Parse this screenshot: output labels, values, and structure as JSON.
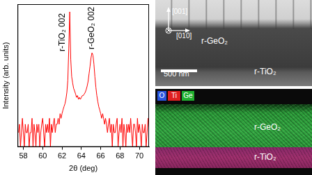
{
  "chart_data": {
    "type": "line",
    "x": [
      57.5,
      57.6,
      57.7,
      57.8,
      57.9,
      58.0,
      58.1,
      58.2,
      58.3,
      58.4,
      58.5,
      58.6,
      58.7,
      58.8,
      58.9,
      59.0,
      59.1,
      59.2,
      59.3,
      59.4,
      59.5,
      59.6,
      59.7,
      59.8,
      59.9,
      60.0,
      60.1,
      60.2,
      60.3,
      60.4,
      60.5,
      60.6,
      60.7,
      60.8,
      60.9,
      61.0,
      61.1,
      61.2,
      61.3,
      61.4,
      61.5,
      61.6,
      61.7,
      61.8,
      61.9,
      62.0,
      62.1,
      62.2,
      62.3,
      62.4,
      62.5,
      62.6,
      62.7,
      62.8,
      62.9,
      63.0,
      63.1,
      63.2,
      63.3,
      63.4,
      63.5,
      63.6,
      63.7,
      63.8,
      63.9,
      64.0,
      64.1,
      64.2,
      64.3,
      64.4,
      64.5,
      64.6,
      64.7,
      64.8,
      64.9,
      65.0,
      65.1,
      65.2,
      65.3,
      65.4,
      65.5,
      65.6,
      65.7,
      65.8,
      65.9,
      66.0,
      66.1,
      66.2,
      66.3,
      66.4,
      66.5,
      66.6,
      66.7,
      66.8,
      66.9,
      67.0,
      67.1,
      67.2,
      67.3,
      67.4,
      67.5,
      67.6,
      67.7,
      67.8,
      67.9,
      68.0,
      68.1,
      68.2,
      68.3,
      68.4,
      68.5,
      68.6,
      68.7,
      68.8,
      68.9,
      69.0,
      69.1,
      69.2,
      69.3,
      69.4,
      69.5,
      69.6,
      69.7,
      69.8,
      69.9,
      70.0,
      70.1,
      70.2,
      70.3,
      70.4,
      70.5,
      70.6,
      70.7,
      70.8,
      70.9,
      71.0
    ],
    "values": [
      2,
      3,
      1,
      2,
      4,
      2,
      1,
      3,
      2,
      2,
      3,
      1,
      2,
      2,
      4,
      1,
      3,
      2,
      1,
      3,
      2,
      3,
      1,
      2,
      3,
      4,
      2,
      1,
      3,
      2,
      3,
      2,
      4,
      1,
      3,
      2,
      3,
      4,
      2,
      3,
      3,
      4,
      3,
      5,
      4,
      5,
      6,
      7,
      8,
      10,
      14,
      25,
      120,
      690,
      70,
      30,
      22,
      17,
      15,
      13,
      11,
      12,
      10,
      11,
      10,
      11,
      12,
      12,
      13,
      14,
      16,
      19,
      24,
      35,
      50,
      75,
      95,
      85,
      55,
      30,
      18,
      12,
      9,
      7,
      6,
      5,
      4,
      5,
      4,
      3,
      4,
      3,
      2,
      3,
      4,
      2,
      3,
      1,
      3,
      2,
      2,
      3,
      4,
      1,
      2,
      3,
      2,
      4,
      1,
      3,
      2,
      1,
      3,
      2,
      3,
      2,
      4,
      2,
      1,
      3,
      3,
      2,
      1,
      4,
      2,
      3,
      2,
      1,
      3,
      2,
      2,
      3,
      1,
      2,
      4,
      2
    ],
    "color": "#ff0000",
    "xlabel": "2θ (deg)",
    "ylabel": "Intensity (arb. units)",
    "xlim": [
      57.4,
      71.0
    ],
    "xticks": [
      58,
      60,
      62,
      64,
      66,
      68,
      70
    ],
    "ylim": [
      1,
      1000
    ],
    "log": "y",
    "grid": false,
    "tick_labels": "x",
    "annotations": [
      {
        "text": "r-TiO₂ 002",
        "x": 62.8
      },
      {
        "text": "r-GeO₂ 002",
        "x": 65.1
      }
    ]
  },
  "tem_image": {
    "directions": [
      "[001]",
      "[010]"
    ],
    "layers": [
      "r-GeO₂",
      "r-TiO₂"
    ],
    "scale_bar": "500 nm"
  },
  "edx_map": {
    "legend": [
      {
        "name": "O",
        "color": "#2a55e0"
      },
      {
        "name": "Ti",
        "color": "#e02020"
      },
      {
        "name": "Ge",
        "color": "#20b030"
      }
    ],
    "layers": [
      "r-GeO₂",
      "r-TiO₂"
    ]
  }
}
